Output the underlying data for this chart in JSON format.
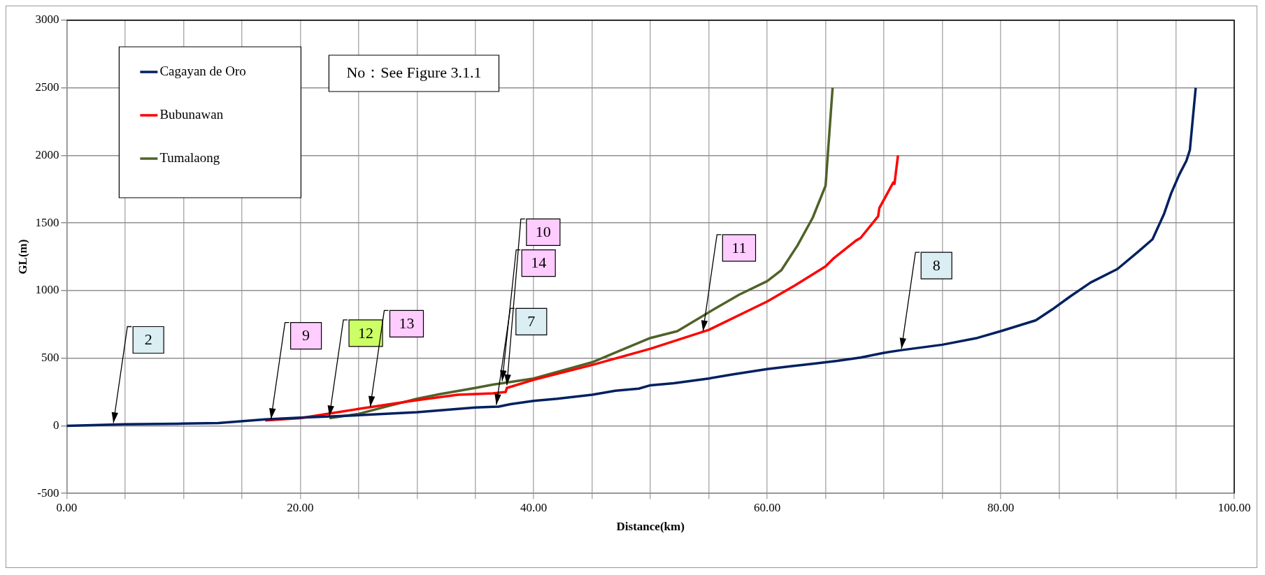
{
  "chart_data": {
    "type": "line",
    "xlabel": "Distance(km)",
    "ylabel": "GL(m)",
    "xlim": [
      0,
      100
    ],
    "ylim": [
      -500,
      3000
    ],
    "xticks": [
      {
        "value": 0,
        "label": "0.00"
      },
      {
        "value": 5,
        "label": null
      },
      {
        "value": 10,
        "label": null
      },
      {
        "value": 15,
        "label": null
      },
      {
        "value": 20,
        "label": "20.00"
      },
      {
        "value": 25,
        "label": null
      },
      {
        "value": 30,
        "label": null
      },
      {
        "value": 35,
        "label": null
      },
      {
        "value": 40,
        "label": "40.00"
      },
      {
        "value": 45,
        "label": null
      },
      {
        "value": 50,
        "label": null
      },
      {
        "value": 55,
        "label": null
      },
      {
        "value": 60,
        "label": "60.00"
      },
      {
        "value": 65,
        "label": null
      },
      {
        "value": 70,
        "label": null
      },
      {
        "value": 75,
        "label": null
      },
      {
        "value": 80,
        "label": "80.00"
      },
      {
        "value": 85,
        "label": null
      },
      {
        "value": 90,
        "label": null
      },
      {
        "value": 95,
        "label": null
      },
      {
        "value": 100,
        "label": "100.00"
      }
    ],
    "yticks": [
      -500,
      0,
      500,
      1000,
      1500,
      2000,
      2500,
      3000
    ],
    "grid": true,
    "legend": "top left",
    "marker": "none",
    "line_style": "solid",
    "series": [
      {
        "name": "Cagayan de Oro",
        "color": "#002060",
        "x": [
          0,
          5,
          10,
          13,
          17,
          20,
          25,
          30,
          35,
          36.5,
          37,
          38,
          40,
          42,
          45,
          47,
          49,
          50,
          52,
          55,
          57,
          60,
          62,
          64,
          66,
          68,
          70,
          71.5,
          75,
          78,
          80,
          83,
          84.4,
          86,
          87.7,
          90,
          91.8,
          93,
          94,
          94.6,
          95.3,
          95.9,
          96.2,
          96.7
        ],
        "values": [
          0,
          12,
          16,
          20,
          47,
          60,
          78,
          100,
          135,
          140,
          142,
          160,
          185,
          200,
          230,
          260,
          275,
          300,
          315,
          350,
          380,
          420,
          440,
          460,
          480,
          505,
          540,
          560,
          600,
          650,
          700,
          780,
          860,
          960,
          1060,
          1160,
          1290,
          1380,
          1570,
          1720,
          1860,
          1960,
          2040,
          2500
        ]
      },
      {
        "name": "Bubunawan",
        "color": "#ff0000",
        "x": [
          17,
          20,
          25,
          30,
          33.5,
          35,
          36.5,
          37.6,
          37.7,
          40,
          45,
          50,
          55,
          60,
          62.4,
          65,
          65.7,
          67.6,
          68,
          69.5,
          69.6,
          70.8,
          70.9,
          71.2
        ],
        "values": [
          40,
          57,
          125,
          190,
          230,
          235,
          240,
          250,
          280,
          340,
          450,
          570,
          710,
          920,
          1040,
          1180,
          1240,
          1370,
          1390,
          1550,
          1610,
          1800,
          1790,
          2000
        ]
      },
      {
        "name": "Tumalaong",
        "color": "#4f6228",
        "x": [
          22.5,
          25,
          27.5,
          30,
          32,
          35,
          36.5,
          40,
          45,
          50,
          52.3,
          55,
          57.6,
          60,
          61.2,
          62.6,
          63.9,
          65,
          65.6
        ],
        "values": [
          57,
          88,
          145,
          200,
          235,
          280,
          305,
          350,
          470,
          650,
          700,
          840,
          970,
          1070,
          1150,
          1335,
          1540,
          1777,
          2500
        ]
      }
    ],
    "annotations": [
      "No：See Figure 3.1.1",
      {
        "text": "2",
        "x": 4,
        "y": 10
      },
      {
        "text": "9",
        "x": 17.5,
        "y": 40
      },
      {
        "text": "12",
        "x": 22.5,
        "y": 60
      },
      {
        "text": "13",
        "x": 26,
        "y": 130
      },
      {
        "text": "7",
        "x": 36.8,
        "y": 145
      },
      {
        "text": "14",
        "x": 37.3,
        "y": 320
      },
      {
        "text": "10",
        "x": 37.7,
        "y": 290
      },
      {
        "text": "11",
        "x": 54.5,
        "y": 690
      },
      {
        "text": "8",
        "x": 71.5,
        "y": 560
      }
    ]
  }
}
